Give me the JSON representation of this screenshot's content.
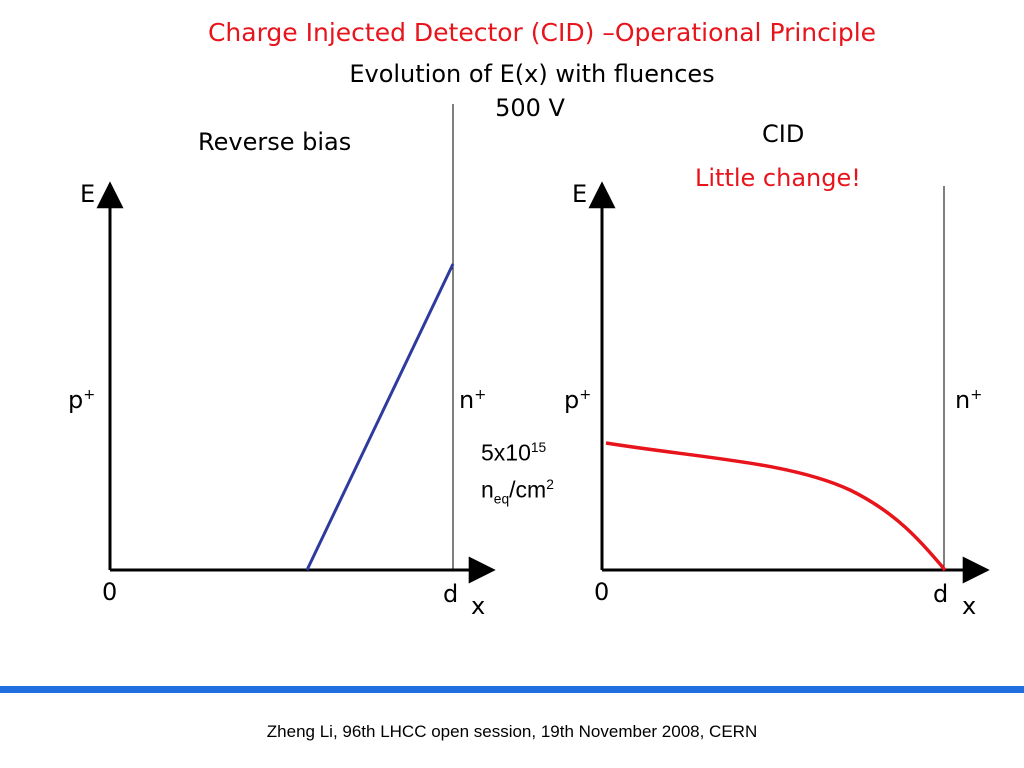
{
  "slide": {
    "title": "Charge Injected Detector (CID) –Operational Principle",
    "subtitle": "Evolution of E(x) with fluences",
    "bias_voltage": "500 V",
    "footer": "Zheng Li, 96th LHCC open session, 19th November 2008, CERN",
    "accent_color": "#e8141b",
    "rule_color": "#1f6fe0"
  },
  "left_plot": {
    "caption": "Reverse bias",
    "y_axis_label": "E",
    "x_axis_label": "x",
    "origin_label": "0",
    "end_label": "d",
    "left_contact": "p",
    "left_contact_sup": "+",
    "right_contact": "n",
    "right_contact_sup": "+",
    "curve_color": "#2e3a9e"
  },
  "right_plot": {
    "caption": "CID",
    "note": "Little change!",
    "y_axis_label": "E",
    "x_axis_label": "x",
    "origin_label": "0",
    "end_label": "d",
    "left_contact": "p",
    "left_contact_sup": "+",
    "right_contact": "n",
    "right_contact_sup": "+",
    "curve_color": "#e8141b"
  },
  "fluence": {
    "value": "5x10",
    "exponent": "15",
    "unit_base": "n",
    "unit_sub": "eq",
    "unit_rest": "/cm",
    "unit_exp": "2"
  }
}
